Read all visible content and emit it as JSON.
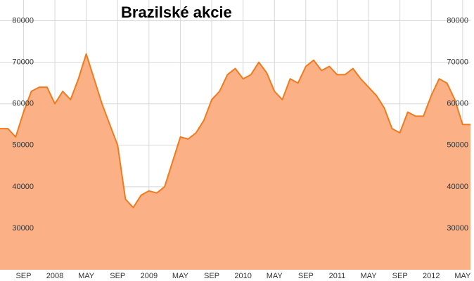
{
  "chart_data": {
    "type": "area",
    "title": "Brazilské akcie",
    "x": [
      "2007-06",
      "2007-07",
      "2007-08",
      "2007-09",
      "2007-10",
      "2007-11",
      "2007-12",
      "2008-01",
      "2008-02",
      "2008-03",
      "2008-04",
      "2008-05",
      "2008-06",
      "2008-07",
      "2008-08",
      "2008-09",
      "2008-10",
      "2008-11",
      "2008-12",
      "2009-01",
      "2009-02",
      "2009-03",
      "2009-04",
      "2009-05",
      "2009-06",
      "2009-07",
      "2009-08",
      "2009-09",
      "2009-10",
      "2009-11",
      "2009-12",
      "2010-01",
      "2010-02",
      "2010-03",
      "2010-04",
      "2010-05",
      "2010-06",
      "2010-07",
      "2010-08",
      "2010-09",
      "2010-10",
      "2010-11",
      "2010-12",
      "2011-01",
      "2011-02",
      "2011-03",
      "2011-04",
      "2011-05",
      "2011-06",
      "2011-07",
      "2011-08",
      "2011-09",
      "2011-10",
      "2011-11",
      "2011-12",
      "2012-01",
      "2012-02",
      "2012-03",
      "2012-04",
      "2012-05",
      "2012-06"
    ],
    "values": [
      54000,
      54000,
      52000,
      58000,
      63000,
      64000,
      64000,
      60000,
      63000,
      61000,
      66000,
      72000,
      66000,
      60000,
      55000,
      50000,
      37000,
      35000,
      38000,
      39000,
      38500,
      40000,
      46000,
      52000,
      51500,
      53000,
      56000,
      61000,
      63000,
      67000,
      68500,
      66000,
      67000,
      70000,
      67500,
      63000,
      61000,
      66000,
      65000,
      69000,
      70500,
      68000,
      69000,
      67000,
      67000,
      68500,
      66000,
      64000,
      62000,
      59000,
      54000,
      53000,
      58000,
      57000,
      57000,
      62000,
      66000,
      65000,
      61000,
      55000,
      55000
    ],
    "color": "#f07b1e",
    "fill_color": "#fbb085",
    "xlim": [
      "2007-06",
      "2012-06"
    ],
    "xticks": [
      {
        "value": "2007-09",
        "label": "SEP"
      },
      {
        "value": "2008-01",
        "label": "2008"
      },
      {
        "value": "2008-05",
        "label": "MAY"
      },
      {
        "value": "2008-09",
        "label": "SEP"
      },
      {
        "value": "2009-01",
        "label": "2009"
      },
      {
        "value": "2009-05",
        "label": "MAY"
      },
      {
        "value": "2009-09",
        "label": "SEP"
      },
      {
        "value": "2010-01",
        "label": "2010"
      },
      {
        "value": "2010-05",
        "label": "MAY"
      },
      {
        "value": "2010-09",
        "label": "SEP"
      },
      {
        "value": "2011-01",
        "label": "2011"
      },
      {
        "value": "2011-05",
        "label": "MAY"
      },
      {
        "value": "2011-09",
        "label": "SEP"
      },
      {
        "value": "2012-01",
        "label": "2012"
      },
      {
        "value": "2012-05",
        "label": "MAY"
      }
    ],
    "ylim": [
      20000,
      85000
    ],
    "yticks": [
      30000,
      40000,
      50000,
      60000,
      70000,
      80000
    ],
    "grid": true
  }
}
